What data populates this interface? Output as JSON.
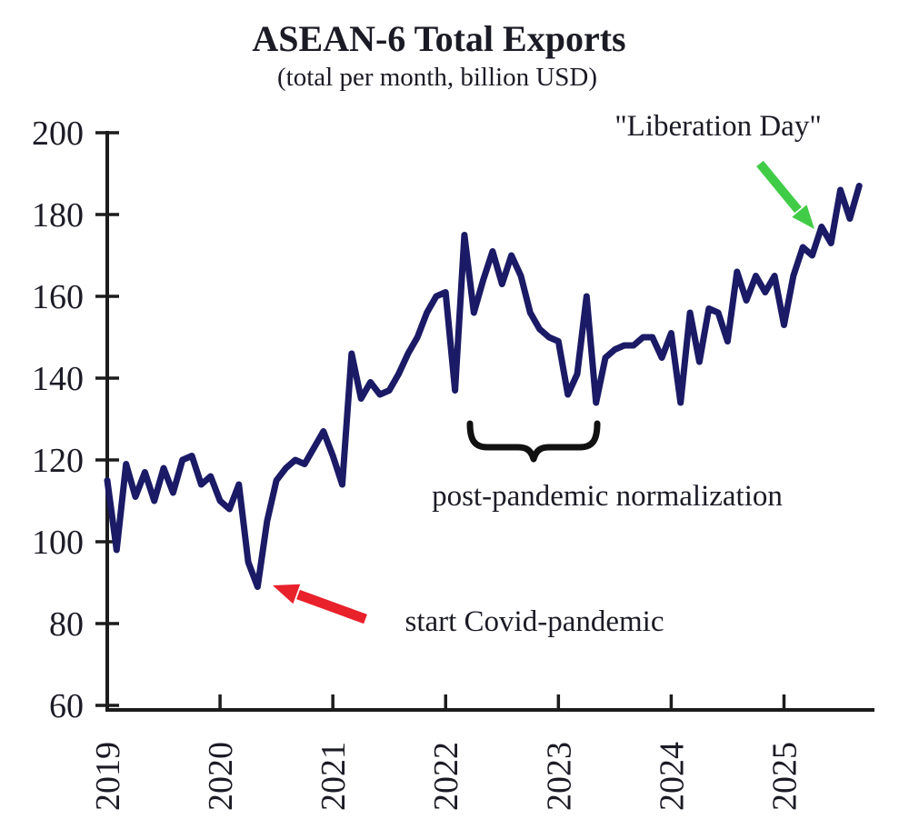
{
  "title": "ASEAN-6 Total Exports",
  "subtitle": "(total per month, billion USD)",
  "annotations": {
    "liberation_day": "\"Liberation Day\"",
    "covid": "start Covid-pandemic",
    "normalization": "post-pandemic normalization"
  },
  "colors": {
    "line": "#1a1a66",
    "axis": "#1c1c1c",
    "text": "#1b1b26",
    "red_arrow": "#e8212b",
    "green_arrow": "#41cc47"
  },
  "chart_data": {
    "type": "line",
    "title": "ASEAN-6 Total Exports",
    "subtitle": "(total per month, billion USD)",
    "xlabel": "",
    "ylabel": "",
    "frequency": "monthly",
    "x_start": "2019-01",
    "x_end": "2025-09",
    "x_ticks": [
      "2019",
      "2020",
      "2021",
      "2022",
      "2023",
      "2024",
      "2025"
    ],
    "y_ticks": [
      60,
      80,
      100,
      120,
      140,
      160,
      180,
      200
    ],
    "ylim": [
      60,
      200
    ],
    "grid": false,
    "legend": "none",
    "series": [
      {
        "name": "ASEAN-6 total exports, billion USD per month",
        "values": [
          115,
          98,
          119,
          111,
          117,
          110,
          118,
          112,
          120,
          121,
          114,
          116,
          110,
          108,
          114,
          95,
          89,
          105,
          115,
          118,
          120,
          119,
          123,
          127,
          121,
          114,
          146,
          135,
          139,
          136,
          137,
          141,
          146,
          150,
          156,
          160,
          161,
          137,
          175,
          156,
          164,
          171,
          163,
          170,
          165,
          156,
          152,
          150,
          149,
          136,
          141,
          160,
          134,
          145,
          147,
          148,
          148,
          150,
          150,
          145,
          151,
          134,
          156,
          144,
          157,
          156,
          149,
          166,
          159,
          165,
          161,
          165,
          153,
          165,
          172,
          170,
          177,
          173,
          186,
          179,
          187
        ]
      }
    ],
    "annotations": [
      {
        "text": "\"Liberation Day\"",
        "target": "2025-04",
        "arrow": "green"
      },
      {
        "text": "start Covid-pandemic",
        "target": "2020-05",
        "arrow": "red"
      },
      {
        "text": "post-pandemic normalization",
        "target": "2022-03 to 2023-05",
        "marker": "brace"
      }
    ]
  }
}
